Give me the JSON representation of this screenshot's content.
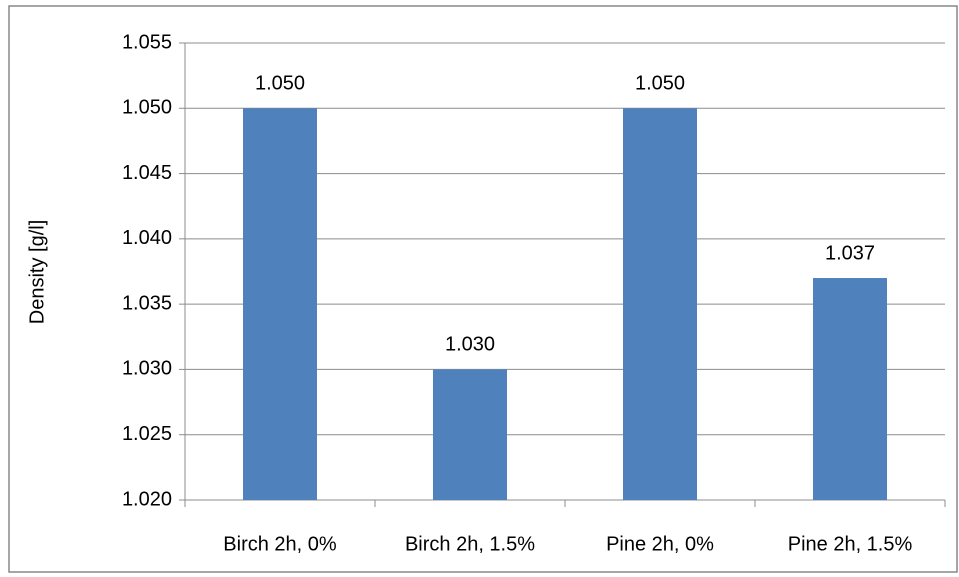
{
  "chart_data": {
    "type": "bar",
    "y_label": "Density [g/l]",
    "categories": [
      "Birch 2h, 0%",
      "Birch 2h, 1.5%",
      "Pine 2h, 0%",
      "Pine 2h, 1.5%"
    ],
    "values": [
      1.05,
      1.03,
      1.05,
      1.037
    ],
    "value_labels": [
      "1.050",
      "1.030",
      "1.050",
      "1.037"
    ],
    "color": "#4f81bd",
    "ylim": [
      1.02,
      1.055
    ],
    "yticks": [
      {
        "value": 1.02,
        "label": "1.020"
      },
      1.025,
      {
        "value": 1.03,
        "label": "1.030"
      },
      1.035,
      {
        "value": 1.04,
        "label": "1.040"
      },
      1.045,
      {
        "value": 1.05,
        "label": "1.050"
      },
      1.055
    ],
    "grid": true
  }
}
